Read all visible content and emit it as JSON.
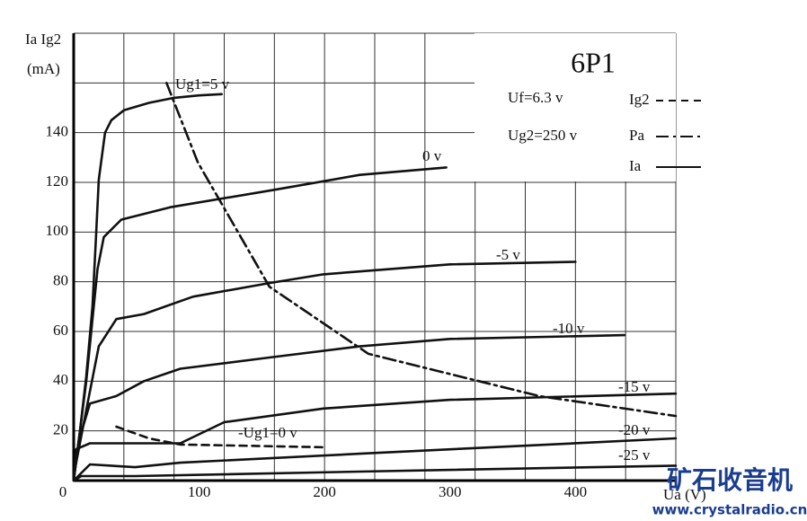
{
  "chart_data": {
    "type": "line",
    "title": "6P1",
    "info": [
      "Uf=6.3 v",
      "Ug2=250 v"
    ],
    "y_label": [
      "Ia Ig2",
      "(mA)"
    ],
    "x_label": "Ua (V)",
    "xlim": [
      0,
      480
    ],
    "ylim": [
      0,
      180
    ],
    "xticks": [
      0,
      100,
      200,
      300,
      400
    ],
    "yticks": [
      20,
      40,
      60,
      80,
      100,
      120,
      140
    ],
    "xgrid": [
      40,
      80,
      120,
      160,
      200,
      240,
      280,
      320,
      360,
      400,
      440,
      480
    ],
    "ygrid": [
      20,
      40,
      60,
      80,
      100,
      120,
      140,
      160,
      180
    ],
    "grid": true,
    "legend": [
      {
        "label": "Ig2",
        "style": "dashed"
      },
      {
        "label": "Pa",
        "style": "dash-dot"
      },
      {
        "label": "Ia",
        "style": "solid"
      }
    ],
    "series": [
      {
        "name": "Ug1=5 v",
        "style": "solid",
        "x": [
          0,
          5,
          10,
          15,
          18,
          20,
          25,
          30,
          40,
          60,
          80,
          100,
          118
        ],
        "values": [
          0,
          20,
          42,
          70,
          100,
          121,
          140,
          145,
          149,
          152,
          154,
          155,
          155.5
        ]
      },
      {
        "name": "0 v",
        "style": "solid",
        "x": [
          0,
          10,
          19,
          24,
          38,
          77,
          160,
          228,
          297
        ],
        "values": [
          0,
          40,
          85,
          98,
          105,
          110,
          117,
          123,
          126
        ]
      },
      {
        "name": "-5 v",
        "style": "solid",
        "x": [
          0,
          11,
          20,
          34,
          56,
          95,
          156,
          199,
          300,
          400
        ],
        "values": [
          2,
          31,
          54,
          65,
          67,
          74,
          79.5,
          83,
          87,
          88
        ]
      },
      {
        "name": "-10 v",
        "style": "solid",
        "x": [
          0,
          4,
          13,
          34,
          56,
          85,
          156,
          228,
          300,
          439
        ],
        "values": [
          0,
          16,
          31,
          34,
          40,
          45,
          49.5,
          54,
          57,
          58.5
        ]
      },
      {
        "name": "-15 v",
        "style": "solid",
        "x": [
          0,
          2,
          13,
          50,
          85,
          120,
          199,
          300,
          480
        ],
        "values": [
          0,
          12.6,
          15,
          15,
          15,
          23.5,
          29,
          32.5,
          35
        ]
      },
      {
        "name": "-20 v",
        "style": "solid",
        "x": [
          0,
          13,
          49,
          85,
          228,
          480
        ],
        "values": [
          0,
          6.5,
          5.4,
          7.2,
          10.8,
          17
        ]
      },
      {
        "name": "-25 v",
        "style": "solid",
        "x": [
          0,
          6,
          49,
          228,
          480
        ],
        "values": [
          0,
          1.8,
          1.8,
          3.6,
          6
        ]
      },
      {
        "name": "-Ug1=0 v",
        "style": "dashed",
        "x": [
          34,
          60,
          85,
          140,
          199
        ],
        "values": [
          21.7,
          17,
          14.5,
          14,
          13.4
        ]
      },
      {
        "style": "dash-dot",
        "x": [
          74,
          99,
          156,
          235,
          371,
          480
        ],
        "values": [
          160,
          128,
          78,
          51,
          34,
          26
        ]
      }
    ],
    "watermark": [
      "矿石收音机",
      "www.crystalradio.cn"
    ]
  }
}
